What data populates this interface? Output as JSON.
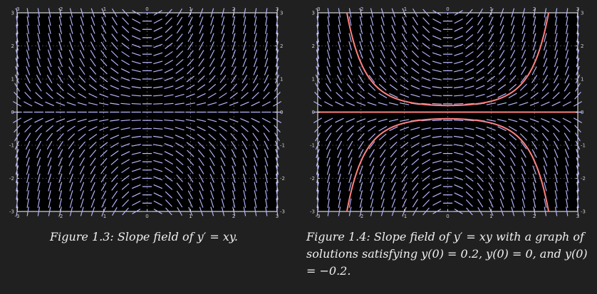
{
  "chart_data": [
    {
      "type": "slope_field",
      "equation": "y' = xy",
      "xlim": [
        -3,
        3
      ],
      "ylim": [
        -3,
        3
      ],
      "xticks": [
        "-3",
        "-2",
        "-1",
        "0",
        "1",
        "2",
        "3"
      ],
      "yticks": [
        "-3",
        "-2",
        "-1",
        "0",
        "1",
        "2",
        "3"
      ],
      "grid": true,
      "solutions": []
    },
    {
      "type": "slope_field",
      "equation": "y' = xy",
      "xlim": [
        -3,
        3
      ],
      "ylim": [
        -3,
        3
      ],
      "xticks": [
        "-3",
        "-2",
        "-1",
        "0",
        "1",
        "2",
        "3"
      ],
      "yticks": [
        "-3",
        "-2",
        "-1",
        "0",
        "1",
        "2",
        "3"
      ],
      "grid": true,
      "solutions": [
        {
          "initial_y": 0.2
        },
        {
          "initial_y": 0
        },
        {
          "initial_y": -0.2
        }
      ],
      "solution_color": "#ff8080"
    }
  ],
  "figures": [
    {
      "caption": "Figure 1.3: Slope field of y′ = xy."
    },
    {
      "caption": "Figure 1.4: Slope field of y′ = xy with a graph of solutions satisfying y(0) = 0.2, y(0) = 0, and y(0) = −0.2."
    }
  ],
  "colors": {
    "background": "#202020",
    "plot_background": "#000000",
    "slope_segments": "#b8b8ff",
    "solution_curves": "#ff8080"
  }
}
